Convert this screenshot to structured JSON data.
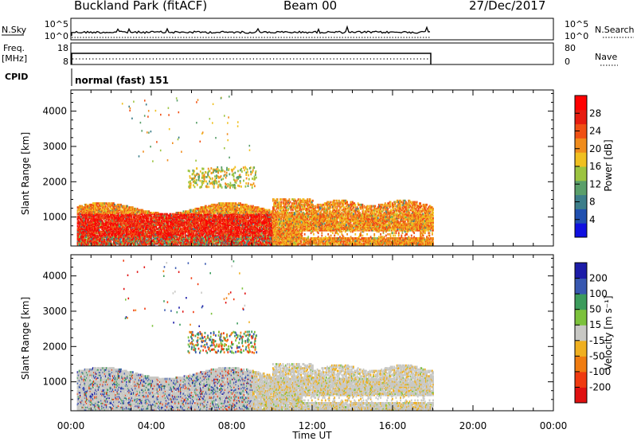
{
  "header": {
    "station": "Buckland Park (fitACF)",
    "beam": "Beam 00",
    "date": "27/Dec/2017"
  },
  "panels": {
    "nsky": {
      "label": "N.Sky",
      "tick_top": "10^5",
      "tick_bottom": "10^0",
      "right_label": "N.Search",
      "right_top": "10^5",
      "right_bottom": "10^0"
    },
    "freq": {
      "label": "Freq.",
      "unit": "[MHz]",
      "tick_top": "18",
      "tick_bottom": "8",
      "right_label": "Nave",
      "right_top": "80",
      "right_bottom": "0"
    },
    "cpid": {
      "label": "CPID",
      "text": "normal (fast) 151"
    }
  },
  "colors": {
    "power": [
      "#1010e0",
      "#2050b0",
      "#3c7e8a",
      "#5a9f6a",
      "#9cc440",
      "#f0c020",
      "#f08c1c",
      "#f05014",
      "#e61c10",
      "#ff0000"
    ],
    "velocity": [
      "#e01010",
      "#f03a10",
      "#f07c10",
      "#f0b020",
      "#c8c8c4",
      "#7cc23c",
      "#3c9c5c",
      "#3858b0",
      "#1c1ca8"
    ]
  },
  "chart_data": [
    {
      "type": "heatmap",
      "name": "power",
      "xlabel": "Time UT",
      "ylabel": "Slant Range [km]",
      "x_ticks": [
        "00:00",
        "04:00",
        "08:00",
        "12:00",
        "16:00",
        "20:00",
        "00:00"
      ],
      "x_range_hours": [
        0,
        24
      ],
      "y_ticks": [
        1000,
        2000,
        3000,
        4000
      ],
      "y_range": [
        180,
        4600
      ],
      "data_end_hour": 18,
      "colorbar": {
        "label": "Power [dB]",
        "ticks": [
          4,
          8,
          12,
          16,
          20,
          24,
          28
        ],
        "range": [
          0,
          32
        ]
      }
    },
    {
      "type": "heatmap",
      "name": "velocity",
      "xlabel": "Time UT",
      "ylabel": "Slant Range [km]",
      "x_ticks": [
        "00:00",
        "04:00",
        "08:00",
        "12:00",
        "16:00",
        "20:00",
        "00:00"
      ],
      "x_range_hours": [
        0,
        24
      ],
      "y_ticks": [
        1000,
        2000,
        3000,
        4000
      ],
      "y_range": [
        180,
        4600
      ],
      "data_end_hour": 18,
      "colorbar": {
        "label": "Velocity [m s⁻¹]",
        "ticks": [
          "200",
          "100",
          "50",
          "15",
          "-15",
          "-50",
          "-100",
          "-200"
        ]
      }
    }
  ]
}
